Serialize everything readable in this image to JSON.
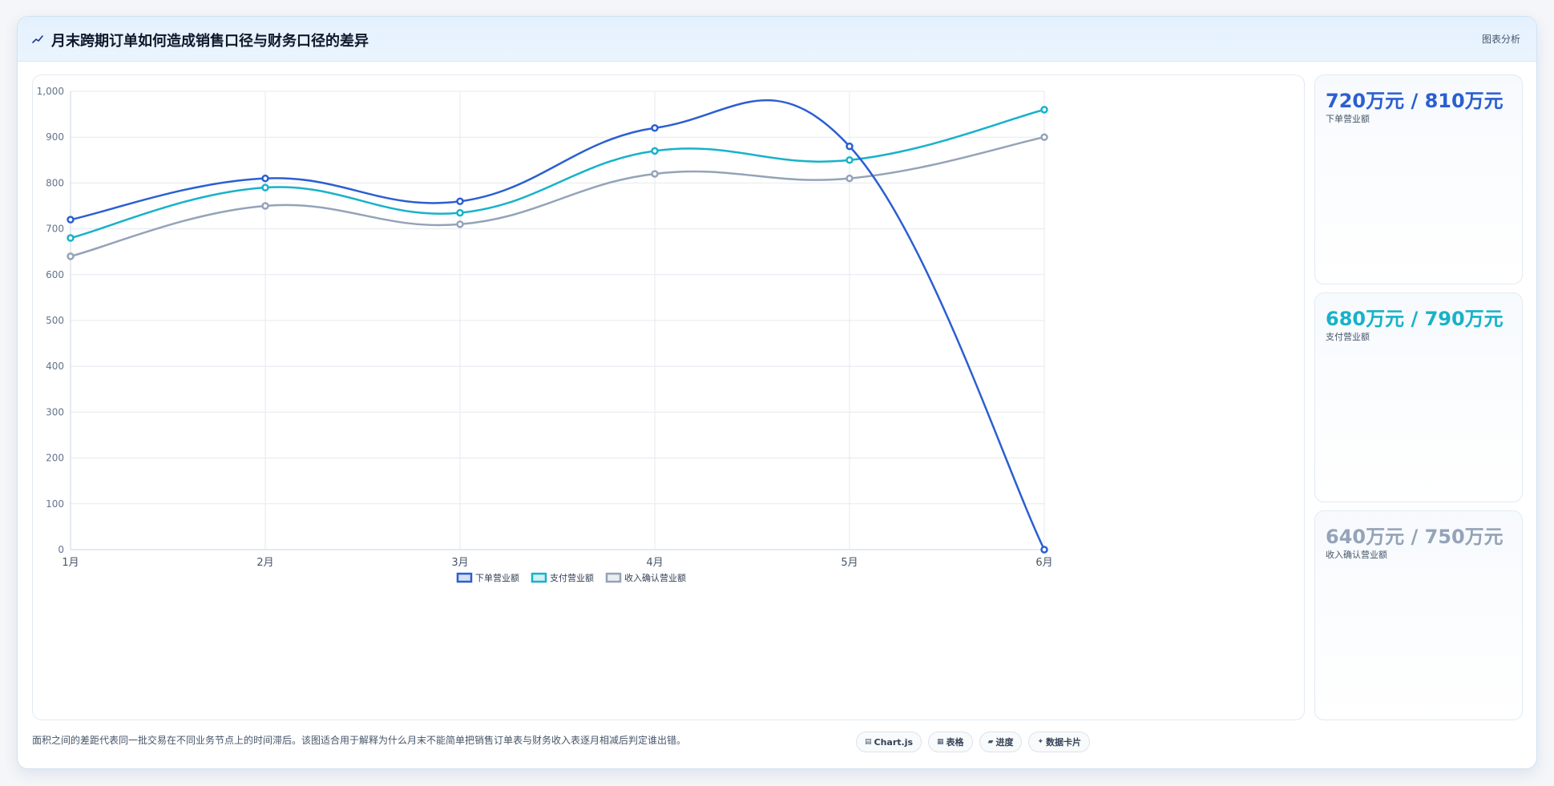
{
  "header": {
    "title": "月末跨期订单如何造成销售口径与财务口径的差异",
    "tag": "图表分析"
  },
  "chart_data": {
    "type": "line",
    "categories": [
      "1月",
      "2月",
      "3月",
      "4月",
      "5月",
      "6月"
    ],
    "series": [
      {
        "name": "下单营业额",
        "color": "#2b5fd1",
        "values": [
          720,
          810,
          760,
          920,
          880,
          0
        ]
      },
      {
        "name": "支付营业额",
        "color": "#17b2c9",
        "values": [
          680,
          790,
          735,
          870,
          850,
          960
        ]
      },
      {
        "name": "收入确认营业额",
        "color": "#94a3b8",
        "values": [
          640,
          750,
          710,
          820,
          810,
          900
        ]
      }
    ],
    "ylim": [
      0,
      1000
    ],
    "yticks": [
      "0",
      "100",
      "200",
      "300",
      "400",
      "500",
      "600",
      "700",
      "800",
      "900",
      "1,000"
    ],
    "grid": true,
    "legend": "bottom"
  },
  "cards": [
    {
      "value": "720万元 / 810万元",
      "label": "下单营业额",
      "color": "#2b5fd1"
    },
    {
      "value": "680万元 / 790万元",
      "label": "支付营业额",
      "color": "#17b2c9"
    },
    {
      "value": "640万元 / 750万元",
      "label": "收入确认营业额",
      "color": "#94a3b8"
    }
  ],
  "footer": {
    "note": "面积之间的差距代表同一批交易在不同业务节点上的时间滞后。该图适合用于解释为什么月末不能简单把销售订单表与财务收入表逐月相减后判定谁出错。",
    "pills": [
      {
        "icon": "chart-icon",
        "glyph": "▤",
        "label": "Chart.js"
      },
      {
        "icon": "table-icon",
        "glyph": "▦",
        "label": "表格"
      },
      {
        "icon": "progress-icon",
        "glyph": "▰",
        "label": "进度"
      },
      {
        "icon": "sparkle-icon",
        "glyph": "✦",
        "label": "数据卡片"
      }
    ]
  }
}
